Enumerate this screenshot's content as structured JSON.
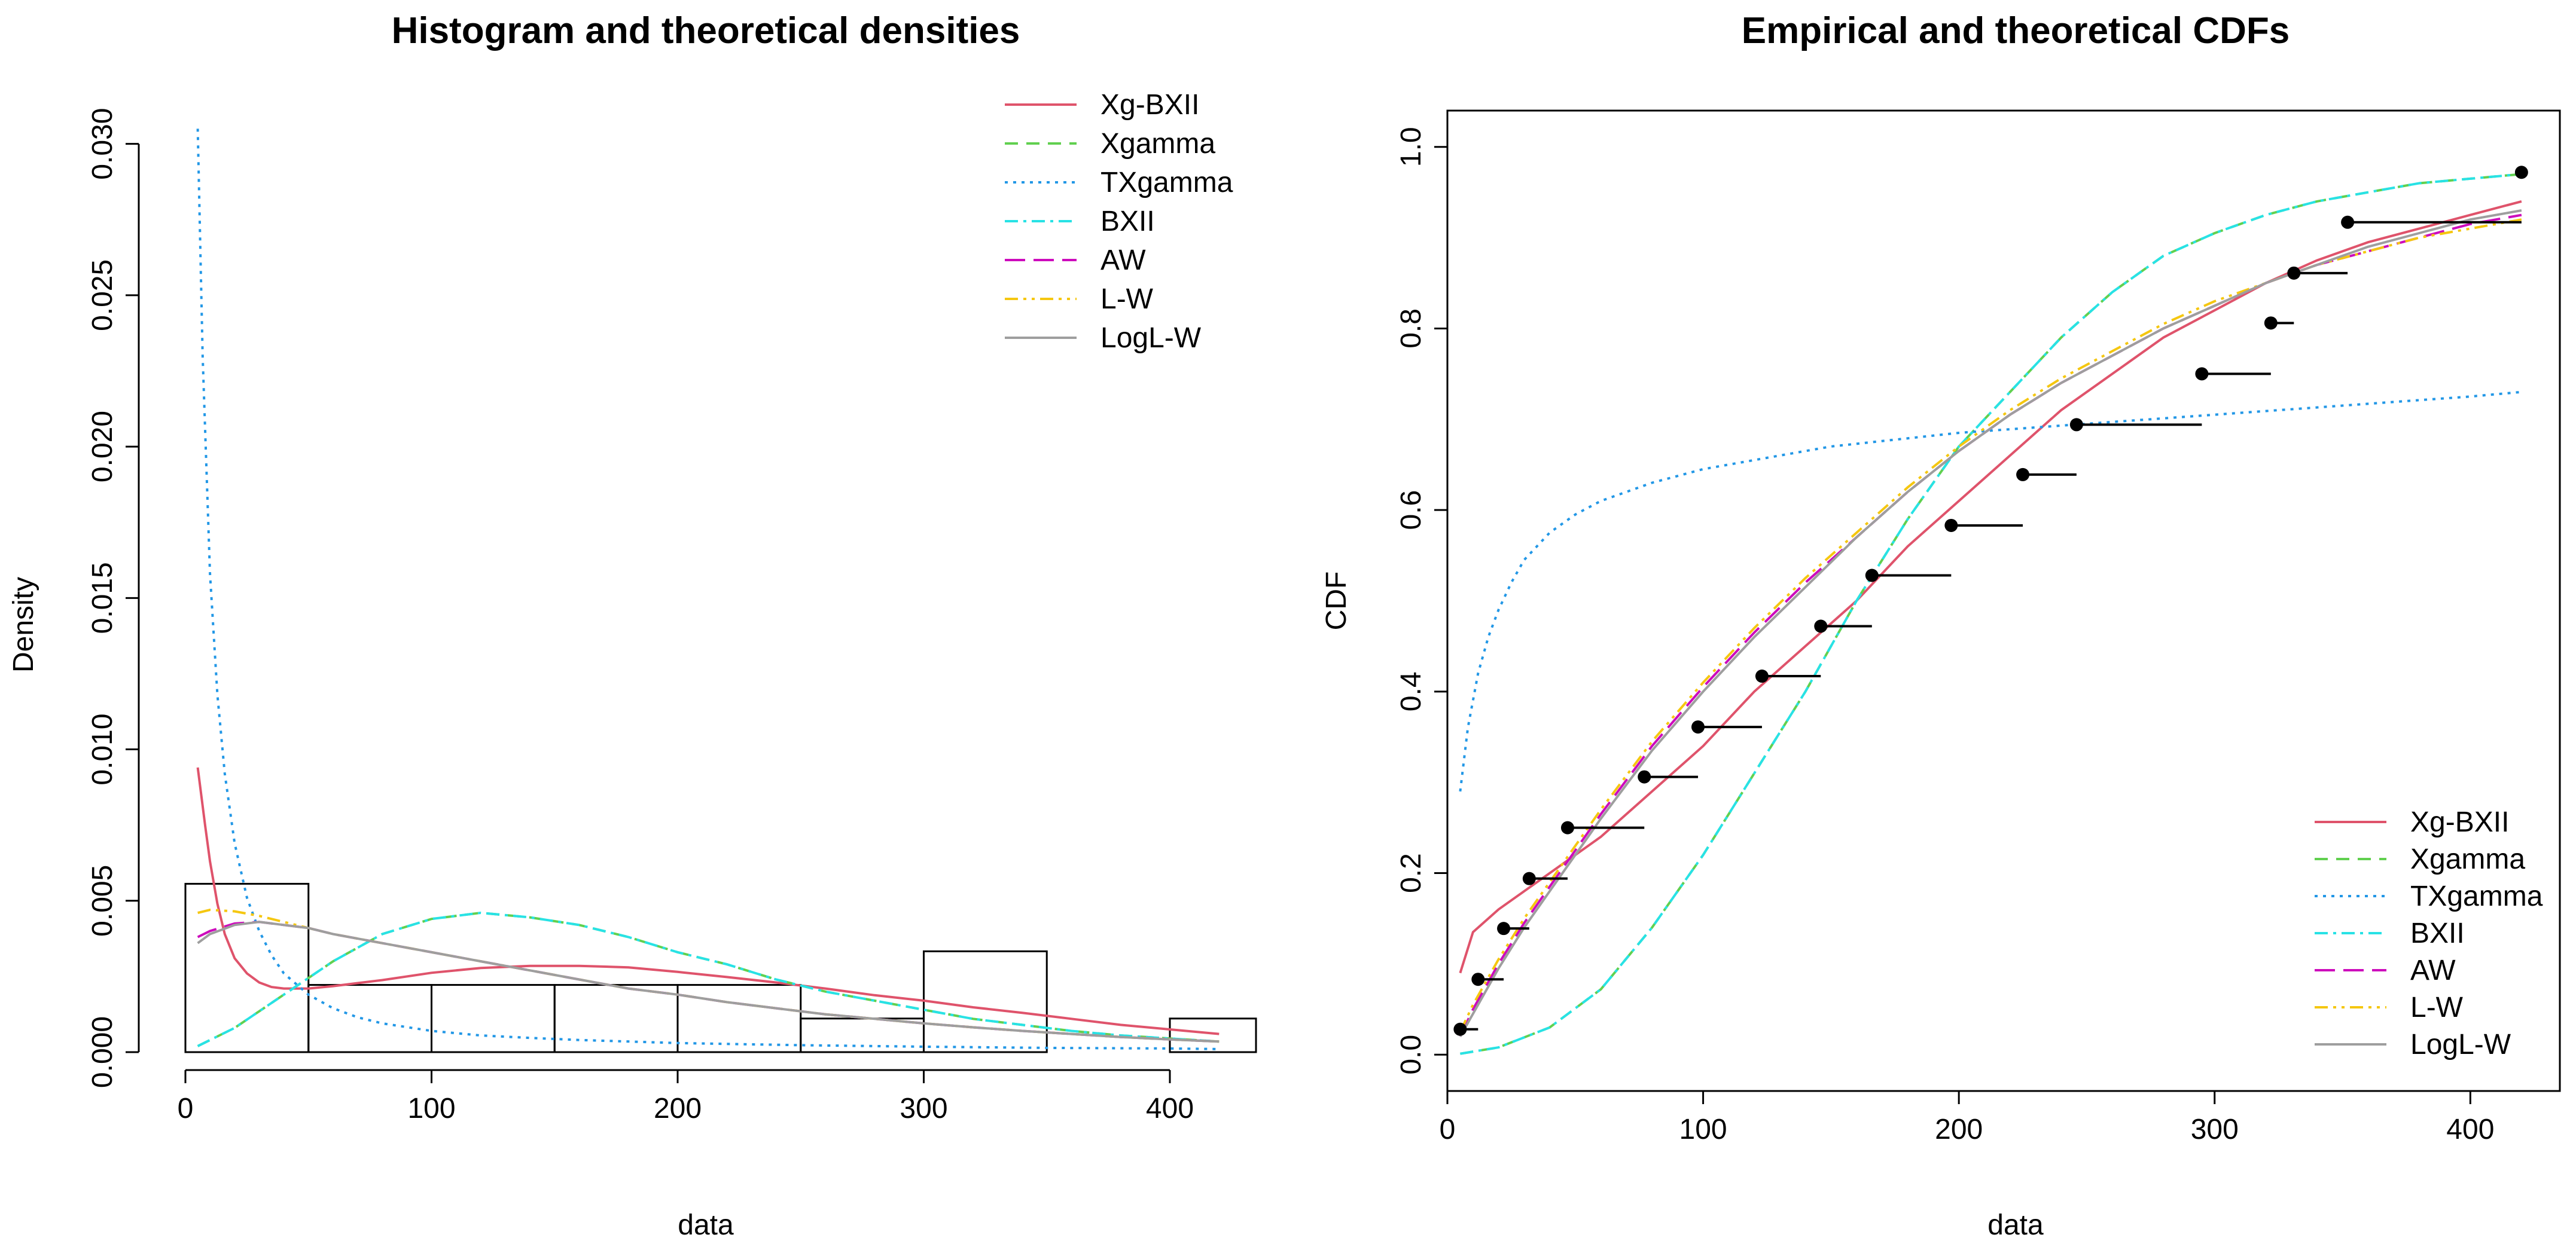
{
  "colors": {
    "xg_bxii": "#DF536B",
    "xgamma": "#61D04F",
    "txgamma": "#2297E6",
    "bxii": "#28E2E5",
    "aw": "#CD0BBC",
    "lw": "#F5C710",
    "logl_w": "#9E9E9E",
    "bars": "#000000",
    "ecdf": "#000000"
  },
  "chart_data": [
    {
      "type": "histogram",
      "title": "Histogram and theoretical densities",
      "xlabel": "data",
      "ylabel": "Density",
      "xlim": [
        0,
        435
      ],
      "ylim": [
        0,
        0.031
      ],
      "xticks": [
        0,
        100,
        200,
        300,
        400
      ],
      "xtick_labels": [
        "0",
        "100",
        "200",
        "300",
        "400"
      ],
      "yticks": [
        0,
        0.005,
        0.01,
        0.015,
        0.02,
        0.025,
        0.03
      ],
      "ytick_labels": [
        "0.000",
        "0.005",
        "0.010",
        "0.015",
        "0.020",
        "0.025",
        "0.030"
      ],
      "legend_position": "top-right",
      "bins": [
        {
          "from": 0,
          "to": 50,
          "density": 0.00556
        },
        {
          "from": 50,
          "to": 100,
          "density": 0.00222
        },
        {
          "from": 100,
          "to": 150,
          "density": 0.00222
        },
        {
          "from": 150,
          "to": 200,
          "density": 0.00222
        },
        {
          "from": 200,
          "to": 250,
          "density": 0.00222
        },
        {
          "from": 250,
          "to": 300,
          "density": 0.00111
        },
        {
          "from": 300,
          "to": 350,
          "density": 0.00333
        },
        {
          "from": 350,
          "to": 400,
          "density": 0
        },
        {
          "from": 400,
          "to": 450,
          "density": 0.00111
        }
      ],
      "series": [
        {
          "name": "Xg-BXII",
          "color": "#DF536B",
          "dash": "",
          "x": [
            5,
            8,
            10,
            13,
            16,
            20,
            25,
            30,
            35,
            40,
            45,
            50,
            60,
            70,
            80,
            100,
            120,
            140,
            160,
            180,
            200,
            220,
            240,
            260,
            280,
            300,
            320,
            340,
            360,
            380,
            400,
            420
          ],
          "y": [
            0.0094,
            0.0075,
            0.0063,
            0.0049,
            0.0039,
            0.0031,
            0.0026,
            0.0023,
            0.00215,
            0.0021,
            0.0021,
            0.0021,
            0.00218,
            0.00228,
            0.00238,
            0.00262,
            0.00278,
            0.00285,
            0.00285,
            0.0028,
            0.00265,
            0.00248,
            0.0023,
            0.0021,
            0.00188,
            0.0017,
            0.00148,
            0.0013,
            0.0011,
            0.0009,
            0.00075,
            0.0006
          ]
        },
        {
          "name": "Xgamma",
          "color": "#61D04F",
          "dash": "22,14",
          "x": [
            5,
            20,
            40,
            60,
            80,
            100,
            120,
            140,
            160,
            180,
            200,
            220,
            240,
            260,
            280,
            300,
            320,
            340,
            360,
            380,
            400,
            420
          ],
          "y": [
            0.0002,
            0.0008,
            0.0019,
            0.003,
            0.0039,
            0.0044,
            0.0046,
            0.00445,
            0.0042,
            0.0038,
            0.0033,
            0.0029,
            0.0024,
            0.002,
            0.0017,
            0.0014,
            0.0011,
            0.0009,
            0.0007,
            0.00055,
            0.00045,
            0.00035
          ]
        },
        {
          "name": "TXgamma",
          "color": "#2297E6",
          "dash": "5,9",
          "x": [
            5,
            7,
            10,
            13,
            16,
            20,
            25,
            30,
            35,
            40,
            50,
            60,
            70,
            80,
            100,
            120,
            140,
            160,
            200,
            250,
            300,
            350,
            400,
            420
          ],
          "y": [
            0.0305,
            0.023,
            0.0158,
            0.0118,
            0.0092,
            0.0069,
            0.0051,
            0.004,
            0.0032,
            0.0026,
            0.0019,
            0.00145,
            0.00115,
            0.00095,
            0.0007,
            0.00055,
            0.00047,
            0.0004,
            0.0003,
            0.00023,
            0.00018,
            0.00014,
            0.00012,
            0.0001
          ]
        },
        {
          "name": "BXII",
          "color": "#28E2E5",
          "dash": "22,9,5,9",
          "x": [
            5,
            20,
            40,
            60,
            80,
            100,
            120,
            140,
            160,
            180,
            200,
            220,
            240,
            260,
            280,
            300,
            320,
            340,
            360,
            380,
            400,
            420
          ],
          "y": [
            0.0002,
            0.0008,
            0.0019,
            0.003,
            0.0039,
            0.0044,
            0.0046,
            0.00445,
            0.0042,
            0.0038,
            0.0033,
            0.0029,
            0.0024,
            0.002,
            0.0017,
            0.0014,
            0.0011,
            0.0009,
            0.0007,
            0.00055,
            0.00045,
            0.00035
          ]
        },
        {
          "name": "AW",
          "color": "#CD0BBC",
          "dash": "34,14",
          "x": [
            5,
            10,
            20,
            30,
            40,
            50,
            60,
            80,
            100,
            120,
            140,
            160,
            180,
            200,
            220,
            240,
            260,
            280,
            300,
            320,
            340,
            360,
            380,
            400,
            420
          ],
          "y": [
            0.0038,
            0.004,
            0.00425,
            0.0043,
            0.0042,
            0.0041,
            0.0039,
            0.0036,
            0.0033,
            0.003,
            0.0027,
            0.0024,
            0.0021,
            0.0019,
            0.00165,
            0.00145,
            0.00125,
            0.0011,
            0.00095,
            0.00082,
            0.0007,
            0.0006,
            0.0005,
            0.00042,
            0.00035
          ]
        },
        {
          "name": "L-W",
          "color": "#F5C710",
          "dash": "22,9,5,9,5,9",
          "x": [
            5,
            10,
            20,
            30,
            40,
            50,
            60,
            80,
            100,
            120,
            140,
            160,
            180,
            200,
            220,
            240,
            260,
            280,
            300,
            320,
            340,
            360,
            380,
            400,
            420
          ],
          "y": [
            0.0046,
            0.0047,
            0.00465,
            0.0045,
            0.0043,
            0.0041,
            0.0039,
            0.0036,
            0.0033,
            0.003,
            0.0027,
            0.0024,
            0.0021,
            0.0019,
            0.00165,
            0.00145,
            0.00125,
            0.0011,
            0.00095,
            0.00082,
            0.0007,
            0.0006,
            0.0005,
            0.00042,
            0.00035
          ]
        },
        {
          "name": "LogL-W",
          "color": "#9E9E9E",
          "dash": "",
          "x": [
            5,
            10,
            20,
            30,
            40,
            50,
            60,
            80,
            100,
            120,
            140,
            160,
            180,
            200,
            220,
            240,
            260,
            280,
            300,
            320,
            340,
            360,
            380,
            400,
            420
          ],
          "y": [
            0.0036,
            0.0039,
            0.0042,
            0.0043,
            0.0042,
            0.0041,
            0.0039,
            0.0036,
            0.0033,
            0.003,
            0.0027,
            0.0024,
            0.0021,
            0.0019,
            0.00165,
            0.00145,
            0.00125,
            0.0011,
            0.00095,
            0.00082,
            0.0007,
            0.0006,
            0.0005,
            0.00042,
            0.00035
          ]
        }
      ]
    },
    {
      "type": "line",
      "title": "Empirical and theoretical CDFs",
      "xlabel": "data",
      "ylabel": "CDF",
      "xlim": [
        0,
        435
      ],
      "ylim": [
        -0.04,
        1.04
      ],
      "xticks": [
        0,
        100,
        200,
        300,
        400
      ],
      "xtick_labels": [
        "0",
        "100",
        "200",
        "300",
        "400"
      ],
      "yticks": [
        0,
        0.2,
        0.4,
        0.6,
        0.8,
        1.0
      ],
      "ytick_labels": [
        "0.0",
        "0.2",
        "0.4",
        "0.6",
        "0.8",
        "1.0"
      ],
      "legend_position": "bottom-right",
      "ecdf": [
        {
          "x": 5,
          "y": 0.028,
          "x_end": 12
        },
        {
          "x": 12,
          "y": 0.083,
          "x_end": 22
        },
        {
          "x": 22,
          "y": 0.139,
          "x_end": 32
        },
        {
          "x": 32,
          "y": 0.194,
          "x_end": 47
        },
        {
          "x": 47,
          "y": 0.25,
          "x_end": 77
        },
        {
          "x": 77,
          "y": 0.306,
          "x_end": 98
        },
        {
          "x": 98,
          "y": 0.361,
          "x_end": 123
        },
        {
          "x": 123,
          "y": 0.417,
          "x_end": 146
        },
        {
          "x": 146,
          "y": 0.472,
          "x_end": 166
        },
        {
          "x": 166,
          "y": 0.528,
          "x_end": 197
        },
        {
          "x": 197,
          "y": 0.583,
          "x_end": 225
        },
        {
          "x": 225,
          "y": 0.639,
          "x_end": 246
        },
        {
          "x": 246,
          "y": 0.694,
          "x_end": 295
        },
        {
          "x": 295,
          "y": 0.75,
          "x_end": 322
        },
        {
          "x": 322,
          "y": 0.806,
          "x_end": 331
        },
        {
          "x": 331,
          "y": 0.861,
          "x_end": 352
        },
        {
          "x": 352,
          "y": 0.917,
          "x_end": 420
        },
        {
          "x": 420,
          "y": 0.972,
          "x_end": 420
        }
      ],
      "series": [
        {
          "name": "Xg-BXII",
          "color": "#DF536B",
          "dash": "",
          "x": [
            5,
            10,
            20,
            30,
            40,
            50,
            60,
            80,
            100,
            120,
            140,
            160,
            180,
            200,
            220,
            240,
            260,
            280,
            300,
            320,
            340,
            360,
            380,
            400,
            420
          ],
          "y": [
            0.09,
            0.135,
            0.16,
            0.18,
            0.2,
            0.22,
            0.24,
            0.29,
            0.34,
            0.4,
            0.45,
            0.5,
            0.56,
            0.61,
            0.66,
            0.71,
            0.75,
            0.79,
            0.82,
            0.85,
            0.875,
            0.895,
            0.91,
            0.925,
            0.94
          ]
        },
        {
          "name": "Xgamma",
          "color": "#61D04F",
          "dash": "22,14",
          "x": [
            5,
            20,
            40,
            60,
            80,
            100,
            120,
            140,
            160,
            180,
            200,
            220,
            240,
            260,
            280,
            300,
            320,
            340,
            360,
            380,
            400,
            420
          ],
          "y": [
            0.001,
            0.008,
            0.03,
            0.072,
            0.14,
            0.22,
            0.31,
            0.4,
            0.5,
            0.59,
            0.67,
            0.73,
            0.79,
            0.84,
            0.88,
            0.905,
            0.925,
            0.94,
            0.95,
            0.96,
            0.965,
            0.97
          ]
        },
        {
          "name": "TXgamma",
          "color": "#2297E6",
          "dash": "5,9",
          "x": [
            5,
            8,
            12,
            16,
            20,
            25,
            30,
            40,
            50,
            60,
            80,
            100,
            120,
            150,
            200,
            250,
            300,
            350,
            400,
            420
          ],
          "y": [
            0.29,
            0.36,
            0.42,
            0.46,
            0.49,
            0.52,
            0.545,
            0.575,
            0.595,
            0.61,
            0.63,
            0.645,
            0.655,
            0.67,
            0.685,
            0.695,
            0.705,
            0.715,
            0.725,
            0.73
          ]
        },
        {
          "name": "BXII",
          "color": "#28E2E5",
          "dash": "22,9,5,9",
          "x": [
            5,
            20,
            40,
            60,
            80,
            100,
            120,
            140,
            160,
            180,
            200,
            220,
            240,
            260,
            280,
            300,
            320,
            340,
            360,
            380,
            400,
            420
          ],
          "y": [
            0.001,
            0.008,
            0.03,
            0.072,
            0.14,
            0.22,
            0.31,
            0.4,
            0.5,
            0.59,
            0.67,
            0.73,
            0.79,
            0.84,
            0.88,
            0.905,
            0.925,
            0.94,
            0.95,
            0.96,
            0.965,
            0.97
          ]
        },
        {
          "name": "AW",
          "color": "#CD0BBC",
          "dash": "34,14",
          "x": [
            5,
            10,
            20,
            30,
            40,
            50,
            60,
            80,
            100,
            120,
            140,
            160,
            180,
            200,
            220,
            240,
            260,
            280,
            300,
            320,
            340,
            360,
            380,
            400,
            420
          ],
          "y": [
            0.02,
            0.05,
            0.1,
            0.145,
            0.185,
            0.225,
            0.265,
            0.34,
            0.405,
            0.465,
            0.52,
            0.57,
            0.62,
            0.665,
            0.705,
            0.74,
            0.77,
            0.8,
            0.825,
            0.85,
            0.87,
            0.885,
            0.9,
            0.915,
            0.925
          ]
        },
        {
          "name": "L-W",
          "color": "#F5C710",
          "dash": "22,9,5,9,5,9",
          "x": [
            5,
            10,
            20,
            30,
            40,
            50,
            60,
            80,
            100,
            120,
            140,
            160,
            180,
            200,
            220,
            240,
            260,
            280,
            300,
            320,
            340,
            360,
            380,
            400,
            420
          ],
          "y": [
            0.025,
            0.055,
            0.105,
            0.15,
            0.19,
            0.23,
            0.27,
            0.345,
            0.41,
            0.47,
            0.525,
            0.575,
            0.625,
            0.67,
            0.71,
            0.745,
            0.775,
            0.805,
            0.83,
            0.85,
            0.87,
            0.885,
            0.9,
            0.91,
            0.92
          ]
        },
        {
          "name": "LogL-W",
          "color": "#9E9E9E",
          "dash": "",
          "x": [
            5,
            10,
            20,
            30,
            40,
            50,
            60,
            80,
            100,
            120,
            140,
            160,
            180,
            200,
            220,
            240,
            260,
            280,
            300,
            320,
            340,
            360,
            380,
            400,
            420
          ],
          "y": [
            0.02,
            0.045,
            0.095,
            0.14,
            0.18,
            0.22,
            0.26,
            0.335,
            0.4,
            0.46,
            0.515,
            0.57,
            0.62,
            0.665,
            0.705,
            0.74,
            0.77,
            0.8,
            0.825,
            0.85,
            0.87,
            0.89,
            0.905,
            0.92,
            0.93
          ]
        }
      ]
    }
  ]
}
